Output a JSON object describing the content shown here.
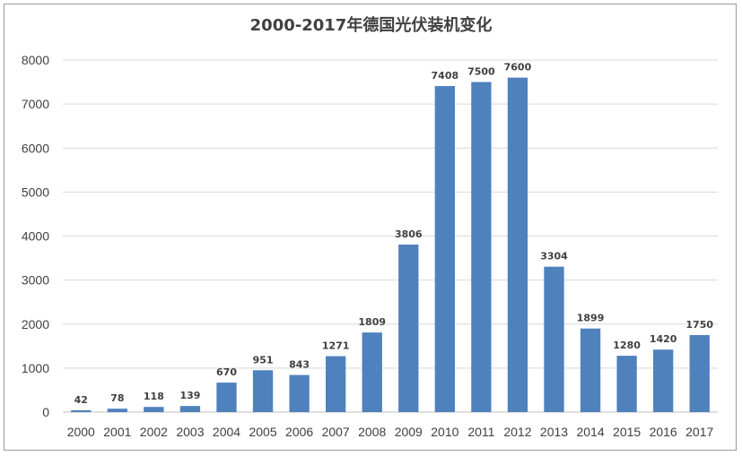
{
  "chart_data": {
    "type": "bar",
    "title": "2000-2017年德国光伏装机变化",
    "xlabel": "",
    "ylabel": "",
    "categories": [
      "2000",
      "2001",
      "2002",
      "2003",
      "2004",
      "2005",
      "2006",
      "2007",
      "2008",
      "2009",
      "2010",
      "2011",
      "2012",
      "2013",
      "2014",
      "2015",
      "2016",
      "2017"
    ],
    "values": [
      42,
      78,
      118,
      139,
      670,
      951,
      843,
      1271,
      1809,
      3806,
      7408,
      7500,
      7600,
      3304,
      1899,
      1280,
      1420,
      1750
    ],
    "ylim": [
      0,
      8000
    ],
    "yticks": [
      0,
      1000,
      2000,
      3000,
      4000,
      5000,
      6000,
      7000,
      8000
    ],
    "grid": true,
    "legend": "none",
    "bar_color": "#4f81bd",
    "grid_color": "#d9d9d9",
    "text_color": "#404040"
  }
}
